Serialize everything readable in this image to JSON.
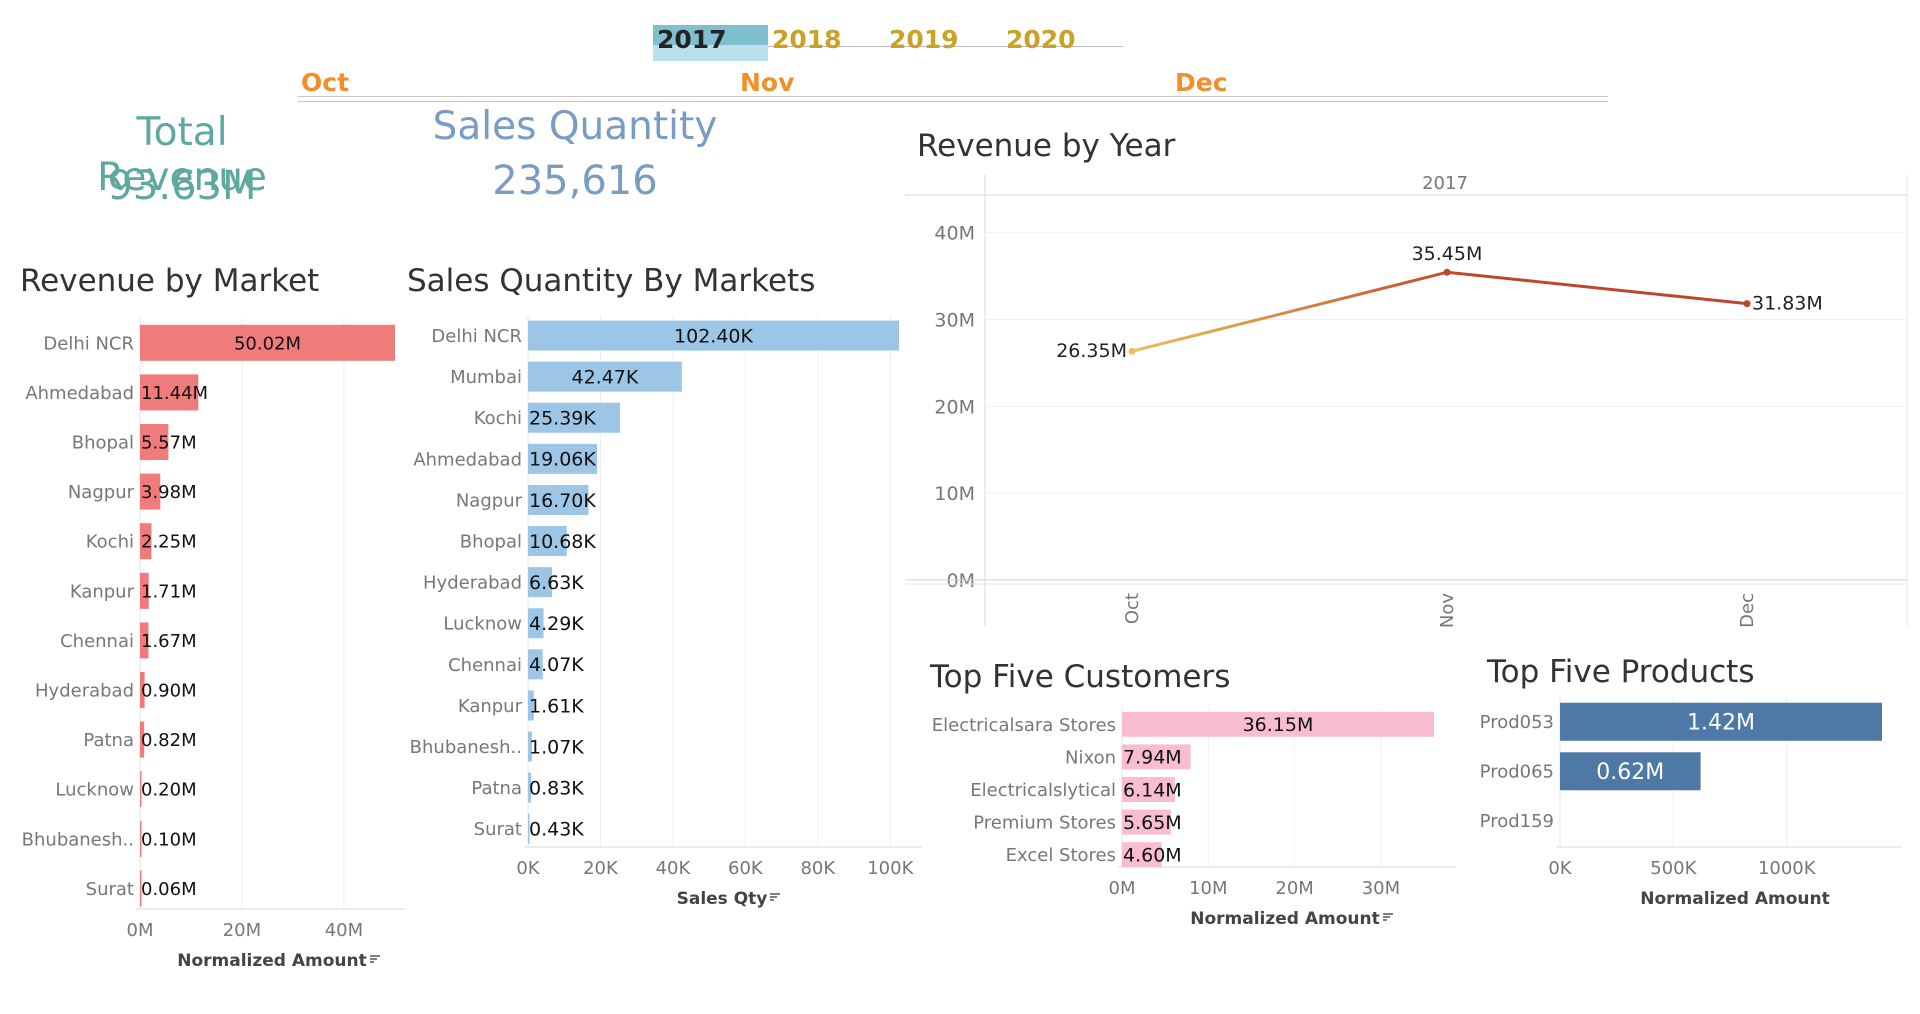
{
  "filters": {
    "years": [
      "2017",
      "2018",
      "2019",
      "2020"
    ],
    "selected_year": "2017",
    "months": [
      "Oct",
      "Nov",
      "Dec"
    ],
    "year_color_selected": "#333333",
    "year_color": "#c9a227",
    "month_color": "#f28e2b",
    "selected_bg": "#7fbfcf"
  },
  "kpis": {
    "total_revenue": {
      "label": "Total Revenue",
      "value": "93.63M",
      "color": "#5fa8a0"
    },
    "sales_quantity": {
      "label": "Sales Quantity",
      "value": "235,616",
      "color": "#7a9cc2"
    }
  },
  "chart_data": [
    {
      "id": "revenue_by_market",
      "type": "bar",
      "orientation": "horizontal",
      "title": "Revenue by Market",
      "categories": [
        "Delhi NCR",
        "Ahmedabad",
        "Bhopal",
        "Nagpur",
        "Kochi",
        "Kanpur",
        "Chennai",
        "Hyderabad",
        "Patna",
        "Lucknow",
        "Bhubanesh..",
        "Surat"
      ],
      "values": [
        50.02,
        11.44,
        5.57,
        3.98,
        2.25,
        1.71,
        1.67,
        0.9,
        0.82,
        0.2,
        0.1,
        0.06
      ],
      "labels": [
        "50.02M",
        "11.44M",
        "5.57M",
        "3.98M",
        "2.25M",
        "1.71M",
        "1.67M",
        "0.90M",
        "0.82M",
        "0.20M",
        "0.10M",
        "0.06M"
      ],
      "unit": "M",
      "xlabel": "Normalized Amount",
      "xticks": [
        "0M",
        "20M",
        "40M"
      ],
      "xtick_values": [
        0,
        20,
        40
      ],
      "xlim": [
        0,
        50.02
      ],
      "color": "#f07b7b",
      "grid": true
    },
    {
      "id": "sales_qty_by_markets",
      "type": "bar",
      "orientation": "horizontal",
      "title": "Sales Quantity By Markets",
      "categories": [
        "Delhi NCR",
        "Mumbai",
        "Kochi",
        "Ahmedabad",
        "Nagpur",
        "Bhopal",
        "Hyderabad",
        "Lucknow",
        "Chennai",
        "Kanpur",
        "Bhubanesh..",
        "Patna",
        "Surat"
      ],
      "values": [
        102.4,
        42.47,
        25.39,
        19.06,
        16.7,
        10.68,
        6.63,
        4.29,
        4.07,
        1.61,
        1.07,
        0.83,
        0.43
      ],
      "labels": [
        "102.40K",
        "42.47K",
        "25.39K",
        "19.06K",
        "16.70K",
        "10.68K",
        "6.63K",
        "4.29K",
        "4.07K",
        "1.61K",
        "1.07K",
        "0.83K",
        "0.43K"
      ],
      "unit": "K",
      "xlabel": "Sales Qty",
      "xticks": [
        "0K",
        "20K",
        "40K",
        "60K",
        "80K",
        "100K"
      ],
      "xtick_values": [
        0,
        20,
        40,
        60,
        80,
        100
      ],
      "xlim": [
        0,
        102.4
      ],
      "color": "#9dc6e6",
      "grid": true
    },
    {
      "id": "revenue_by_year",
      "type": "line",
      "title": "Revenue by Year",
      "panel_header": "2017",
      "x": [
        "Oct",
        "Nov",
        "Dec"
      ],
      "y": [
        26.35,
        35.45,
        31.83
      ],
      "labels": [
        "26.35M",
        "35.45M",
        "31.83M"
      ],
      "yticks": [
        "0M",
        "10M",
        "20M",
        "30M",
        "40M"
      ],
      "ytick_values": [
        0,
        10,
        20,
        30,
        40
      ],
      "ylim": [
        0,
        44
      ],
      "colors": [
        "#e8c35a",
        "#c0452a"
      ],
      "grid": true
    },
    {
      "id": "top_five_customers",
      "type": "bar",
      "orientation": "horizontal",
      "title": "Top Five Customers",
      "categories": [
        "Electricalsara Stores",
        "Nixon",
        "Electricalslytical",
        "Premium Stores",
        "Excel Stores"
      ],
      "values": [
        36.15,
        7.94,
        6.14,
        5.65,
        4.6
      ],
      "labels": [
        "36.15M",
        "7.94M",
        "6.14M",
        "5.65M",
        "4.60M"
      ],
      "unit": "M",
      "xlabel": "Normalized Amount",
      "xticks": [
        "0M",
        "10M",
        "20M",
        "30M"
      ],
      "xtick_values": [
        0,
        10,
        20,
        30
      ],
      "xlim": [
        0,
        36.15
      ],
      "color": "#f9bdd2",
      "grid": true
    },
    {
      "id": "top_five_products",
      "type": "bar",
      "orientation": "horizontal",
      "title": "Top Five Products",
      "categories": [
        "Prod053",
        "Prod065",
        "Prod159"
      ],
      "values": [
        1420,
        620,
        0
      ],
      "labels": [
        "1.42M",
        "0.62M",
        ""
      ],
      "unit": "K",
      "xlabel": "Normalized Amount",
      "xticks": [
        "0K",
        "500K",
        "1000K"
      ],
      "xtick_values": [
        0,
        500,
        1000
      ],
      "xlim": [
        0,
        1420
      ],
      "color": "#4e79a7",
      "grid": true
    }
  ]
}
